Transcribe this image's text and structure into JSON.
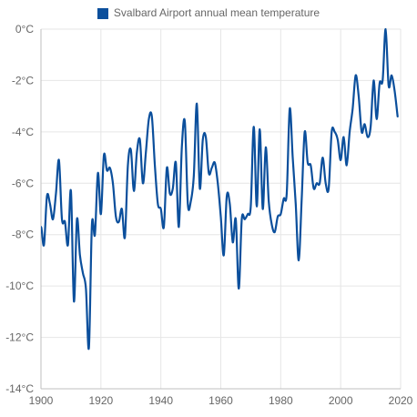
{
  "chart_data": {
    "type": "line",
    "title": "",
    "xlabel": "",
    "ylabel": "",
    "xlim": [
      1900,
      2020
    ],
    "ylim": [
      -14,
      0
    ],
    "grid": true,
    "legend_position": "top-center",
    "x_tick_labels": [
      "1900",
      "1920",
      "1940",
      "1960",
      "1980",
      "2000",
      "2020"
    ],
    "y_tick_labels": [
      "0°C",
      "-2°C",
      "-4°C",
      "-6°C",
      "-8°C",
      "-10°C",
      "-12°C",
      "-14°C"
    ],
    "x_ticks": [
      1900,
      1920,
      1940,
      1960,
      1980,
      2000,
      2020
    ],
    "y_ticks": [
      0,
      -2,
      -4,
      -6,
      -8,
      -10,
      -12,
      -14
    ],
    "series": [
      {
        "name": "Svalbard Airport annual mean temperature",
        "color": "#0b4f9c",
        "x": [
          1899,
          1900,
          1901,
          1902,
          1903,
          1904,
          1905,
          1906,
          1907,
          1908,
          1909,
          1910,
          1911,
          1912,
          1913,
          1914,
          1915,
          1916,
          1917,
          1918,
          1919,
          1920,
          1921,
          1922,
          1923,
          1924,
          1925,
          1926,
          1927,
          1928,
          1929,
          1930,
          1931,
          1932,
          1933,
          1934,
          1935,
          1936,
          1937,
          1938,
          1939,
          1940,
          1941,
          1942,
          1943,
          1944,
          1945,
          1946,
          1947,
          1948,
          1949,
          1950,
          1951,
          1952,
          1953,
          1954,
          1955,
          1956,
          1957,
          1958,
          1959,
          1960,
          1961,
          1962,
          1963,
          1964,
          1965,
          1966,
          1967,
          1968,
          1969,
          1970,
          1971,
          1972,
          1973,
          1974,
          1975,
          1976,
          1977,
          1978,
          1979,
          1980,
          1981,
          1982,
          1983,
          1984,
          1985,
          1986,
          1987,
          1988,
          1989,
          1990,
          1991,
          1992,
          1993,
          1994,
          1995,
          1996,
          1997,
          1998,
          1999,
          2000,
          2001,
          2002,
          2003,
          2004,
          2005,
          2006,
          2007,
          2008,
          2009,
          2010,
          2011,
          2012,
          2013,
          2014,
          2015,
          2016,
          2017,
          2018,
          2019
        ],
        "values": [
          -8.5,
          -7.7,
          -8.4,
          -6.5,
          -6.8,
          -7.4,
          -6.4,
          -5.1,
          -7.4,
          -7.5,
          -8.4,
          -6.3,
          -10.6,
          -7.4,
          -8.8,
          -9.5,
          -10.1,
          -12.4,
          -7.6,
          -8.0,
          -5.6,
          -7.2,
          -4.9,
          -5.5,
          -5.4,
          -6.0,
          -7.3,
          -7.5,
          -7.0,
          -8.1,
          -5.3,
          -4.7,
          -6.3,
          -4.8,
          -4.3,
          -6.0,
          -4.8,
          -3.5,
          -3.4,
          -5.3,
          -6.8,
          -7.0,
          -7.7,
          -5.4,
          -6.4,
          -6.2,
          -5.2,
          -7.7,
          -4.6,
          -3.6,
          -6.8,
          -6.7,
          -5.7,
          -2.9,
          -6.2,
          -4.3,
          -4.2,
          -5.6,
          -5.4,
          -5.2,
          -6.0,
          -7.3,
          -8.8,
          -6.5,
          -6.8,
          -8.3,
          -7.4,
          -10.1,
          -7.4,
          -7.4,
          -7.2,
          -6.9,
          -3.8,
          -6.9,
          -3.9,
          -7.0,
          -4.6,
          -6.7,
          -7.6,
          -7.9,
          -7.3,
          -7.2,
          -6.6,
          -6.4,
          -3.1,
          -5.0,
          -6.8,
          -9.0,
          -6.6,
          -4.0,
          -5.2,
          -5.3,
          -6.2,
          -6.0,
          -6.0,
          -5.0,
          -6.0,
          -6.2,
          -4.0,
          -4.0,
          -4.3,
          -5.1,
          -4.2,
          -5.3,
          -4.0,
          -3.1,
          -1.8,
          -2.6,
          -4.0,
          -3.7,
          -4.2,
          -3.8,
          -2.0,
          -3.5,
          -2.1,
          -2.0,
          0.0,
          -2.2,
          -1.8,
          -2.4,
          -3.4
        ]
      }
    ]
  }
}
